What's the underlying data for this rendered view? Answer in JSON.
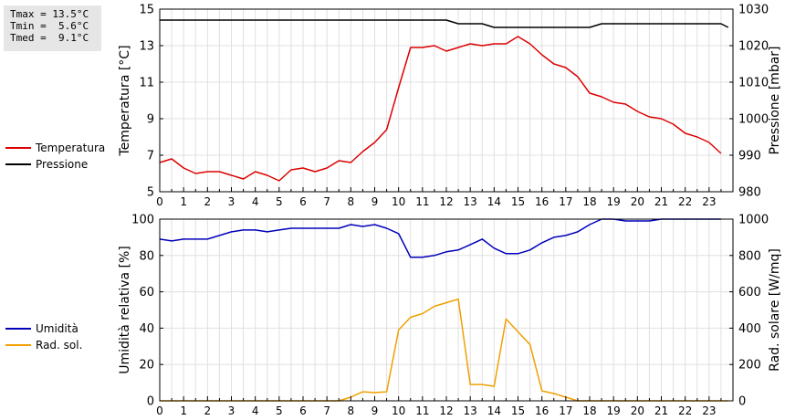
{
  "stats": {
    "tmax": "Tmax = 13.5°C",
    "tmin": "Tmin =  5.6°C",
    "tmed": "Tmed =  9.1°C"
  },
  "legend": {
    "top": [
      {
        "label": "Temperatura",
        "color": "#dd0000"
      },
      {
        "label": "Pressione",
        "color": "#000000"
      }
    ],
    "bottom": [
      {
        "label": "Umidità",
        "color": "#0000bb"
      },
      {
        "label": "Rad. sol.",
        "color": "#f0a000"
      }
    ]
  },
  "chart_data": [
    {
      "type": "line",
      "xlim": [
        0,
        24
      ],
      "x_ticks": [
        "0",
        "1",
        "2",
        "3",
        "4",
        "5",
        "6",
        "7",
        "8",
        "9",
        "10",
        "11",
        "12",
        "13",
        "14",
        "15",
        "16",
        "17",
        "18",
        "19",
        "20",
        "21",
        "22",
        "23"
      ],
      "ylabel": "Temperatura [°C]",
      "ylim": [
        5,
        15
      ],
      "y_ticks": [
        "5",
        "7",
        "9",
        "11",
        "13",
        "15"
      ],
      "y2label": "Pressione [mbar]",
      "y2lim": [
        980,
        1030
      ],
      "y2_ticks": [
        "980",
        "990",
        "1000",
        "1010",
        "1020",
        "1030"
      ],
      "grid": true,
      "series": [
        {
          "name": "Temperatura",
          "axis": "left",
          "color": "#dd0000",
          "x": [
            0,
            0.5,
            1,
            1.5,
            2,
            2.5,
            3,
            3.5,
            4,
            4.5,
            5,
            5.5,
            6,
            6.5,
            7,
            7.5,
            8,
            8.5,
            9,
            9.5,
            10,
            10.5,
            11,
            11.5,
            12,
            12.5,
            13,
            13.5,
            14,
            14.5,
            15,
            15.5,
            16,
            16.5,
            17,
            17.5,
            18,
            18.5,
            19,
            19.5,
            20,
            20.5,
            21,
            21.5,
            22,
            22.5,
            23,
            23.5
          ],
          "y": [
            6.6,
            6.8,
            6.3,
            6.0,
            6.1,
            6.1,
            5.9,
            5.7,
            6.1,
            5.9,
            5.6,
            6.2,
            6.3,
            6.1,
            6.3,
            6.7,
            6.6,
            7.2,
            7.7,
            8.4,
            10.7,
            12.9,
            12.9,
            13.0,
            12.7,
            12.9,
            13.1,
            13.0,
            13.1,
            13.1,
            13.5,
            13.1,
            12.5,
            12.0,
            11.8,
            11.3,
            10.4,
            10.2,
            9.9,
            9.8,
            9.4,
            9.1,
            9.0,
            8.7,
            8.2,
            8.0,
            7.7,
            7.1
          ]
        },
        {
          "name": "Pressione",
          "axis": "right",
          "color": "#000000",
          "x": [
            0,
            12,
            12.5,
            13.5,
            14,
            18,
            18.5,
            23.5,
            23.8
          ],
          "y": [
            1027,
            1027,
            1026,
            1026,
            1025,
            1025,
            1026,
            1026,
            1025
          ]
        }
      ]
    },
    {
      "type": "line",
      "xlim": [
        0,
        24
      ],
      "x_ticks": [
        "0",
        "1",
        "2",
        "3",
        "4",
        "5",
        "6",
        "7",
        "8",
        "9",
        "10",
        "11",
        "12",
        "13",
        "14",
        "15",
        "16",
        "17",
        "18",
        "19",
        "20",
        "21",
        "22",
        "23"
      ],
      "ylabel": "Umidità relativa [%]",
      "ylim": [
        0,
        100
      ],
      "y_ticks": [
        "0",
        "20",
        "40",
        "60",
        "80",
        "100"
      ],
      "y2label": "Rad. solare [W/mq]",
      "y2lim": [
        0,
        1000
      ],
      "y2_ticks": [
        "0",
        "200",
        "400",
        "600",
        "800",
        "1000"
      ],
      "grid": true,
      "series": [
        {
          "name": "Umidità",
          "axis": "left",
          "color": "#0000bb",
          "x": [
            0,
            0.5,
            1,
            1.5,
            2,
            2.5,
            3,
            3.5,
            4,
            4.5,
            5,
            5.5,
            6,
            6.5,
            7,
            7.5,
            8,
            8.5,
            9,
            9.5,
            10,
            10.5,
            11,
            11.5,
            12,
            12.5,
            13,
            13.5,
            14,
            14.5,
            15,
            15.5,
            16,
            16.5,
            17,
            17.5,
            18,
            18.5,
            19,
            19.5,
            20,
            20.5,
            21,
            21.5,
            22,
            22.5,
            23,
            23.5
          ],
          "y": [
            89,
            88,
            89,
            89,
            89,
            91,
            93,
            94,
            94,
            93,
            94,
            95,
            95,
            95,
            95,
            95,
            97,
            96,
            97,
            95,
            92,
            79,
            79,
            80,
            82,
            83,
            86,
            89,
            84,
            81,
            81,
            83,
            87,
            90,
            91,
            93,
            97,
            100,
            100,
            99,
            99,
            99,
            100,
            100,
            100,
            100,
            100,
            100
          ]
        },
        {
          "name": "Rad. sol.",
          "axis": "right",
          "color": "#f0a000",
          "x": [
            0,
            7.5,
            8,
            8.5,
            9,
            9.5,
            10,
            10.5,
            11,
            11.5,
            12,
            12.5,
            13,
            13.5,
            14,
            14.5,
            15,
            15.5,
            16,
            16.5,
            17,
            17.5,
            23.8
          ],
          "y": [
            0,
            0,
            20,
            50,
            45,
            50,
            390,
            460,
            480,
            520,
            540,
            560,
            90,
            90,
            80,
            450,
            380,
            310,
            55,
            40,
            20,
            0,
            0
          ]
        }
      ]
    }
  ]
}
